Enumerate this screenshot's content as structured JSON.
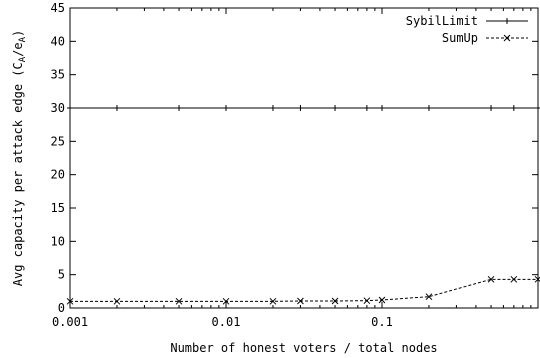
{
  "chart_data": {
    "type": "line",
    "xlabel": "Number of honest voters / total nodes",
    "ylabel_main": "Avg capacity per attack edge (C",
    "ylabel_sub1": "A",
    "ylabel_mid": "/e",
    "ylabel_sub2": "A",
    "ylabel_end": ")",
    "x_scale": "log",
    "xlim": [
      0.001,
      1
    ],
    "ylim": [
      0,
      45
    ],
    "grid": false,
    "legend_position": "top-right",
    "x_ticks": [
      {
        "value": 0.001,
        "label": "0.001"
      },
      {
        "value": 0.01,
        "label": "0.01"
      },
      {
        "value": 0.1,
        "label": "0.1"
      }
    ],
    "y_ticks": [
      {
        "value": 0,
        "label": "0"
      },
      {
        "value": 5,
        "label": "5"
      },
      {
        "value": 10,
        "label": "10"
      },
      {
        "value": 15,
        "label": "15"
      },
      {
        "value": 20,
        "label": "20"
      },
      {
        "value": 25,
        "label": "25"
      },
      {
        "value": 30,
        "label": "30"
      },
      {
        "value": 35,
        "label": "35"
      },
      {
        "value": 40,
        "label": "40"
      },
      {
        "value": 45,
        "label": "45"
      }
    ],
    "series": [
      {
        "name": "SybilLimit",
        "line_style": "solid",
        "marker": "plus",
        "color": "#000000",
        "x": [
          0.001,
          0.002,
          0.005,
          0.01,
          0.02,
          0.03,
          0.05,
          0.08,
          0.1,
          0.2,
          0.5,
          0.7,
          1.0
        ],
        "y": [
          30,
          30,
          30,
          30,
          30,
          30,
          30,
          30,
          30,
          30,
          30,
          30,
          30
        ]
      },
      {
        "name": "SumUp",
        "line_style": "dashed",
        "marker": "cross",
        "color": "#000000",
        "x": [
          0.001,
          0.002,
          0.005,
          0.01,
          0.02,
          0.03,
          0.05,
          0.08,
          0.1,
          0.2,
          0.5,
          0.7,
          1.0
        ],
        "y": [
          1.0,
          1.0,
          1.0,
          1.0,
          1.0,
          1.05,
          1.05,
          1.1,
          1.2,
          1.7,
          4.3,
          4.3,
          4.3
        ]
      }
    ]
  }
}
